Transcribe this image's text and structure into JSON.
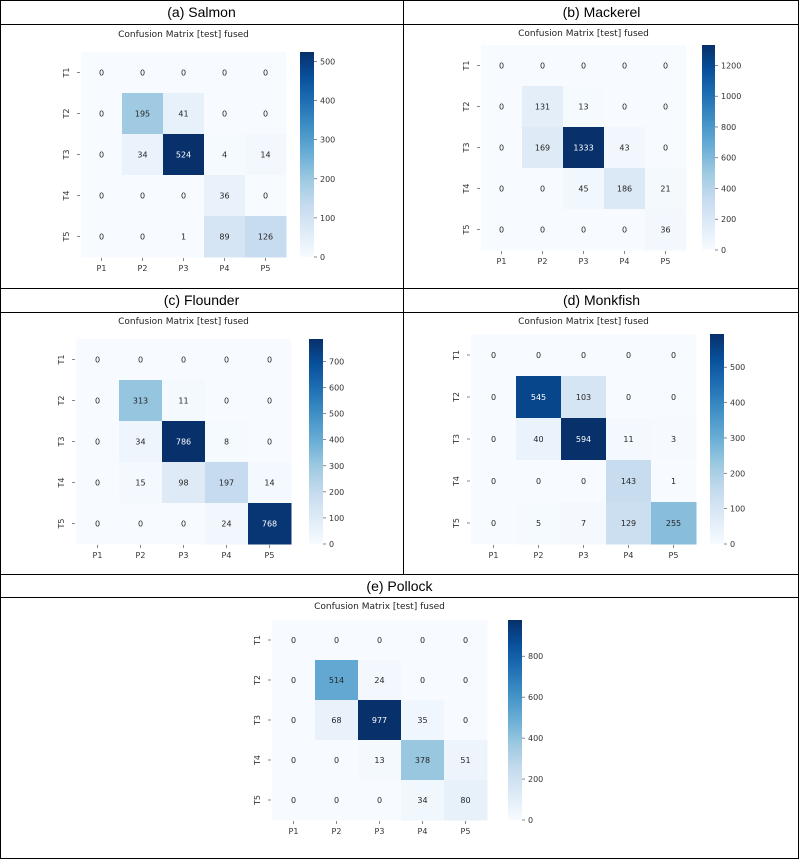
{
  "chart_data": [
    {
      "type": "heatmap",
      "panel_label": "(a) Salmon",
      "title": "Confusion Matrix [test] fused",
      "row_labels": [
        "T1",
        "T2",
        "T3",
        "T4",
        "T5"
      ],
      "col_labels": [
        "P1",
        "P2",
        "P3",
        "P4",
        "P5"
      ],
      "values": [
        [
          0,
          0,
          0,
          0,
          0
        ],
        [
          0,
          195,
          41,
          0,
          0
        ],
        [
          0,
          34,
          524,
          4,
          14
        ],
        [
          0,
          0,
          0,
          36,
          0
        ],
        [
          0,
          0,
          1,
          89,
          126
        ]
      ],
      "vmax": 524,
      "colorbar_ticks": [
        0,
        100,
        200,
        300,
        400,
        500
      ]
    },
    {
      "type": "heatmap",
      "panel_label": "(b) Mackerel",
      "title": "Confusion Matrix [test] fused",
      "row_labels": [
        "T1",
        "T2",
        "T3",
        "T4",
        "T5"
      ],
      "col_labels": [
        "P1",
        "P2",
        "P3",
        "P4",
        "P5"
      ],
      "values": [
        [
          0,
          0,
          0,
          0,
          0
        ],
        [
          0,
          131,
          13,
          0,
          0
        ],
        [
          0,
          169,
          1333,
          43,
          0
        ],
        [
          0,
          0,
          45,
          186,
          21
        ],
        [
          0,
          0,
          0,
          0,
          36
        ]
      ],
      "vmax": 1333,
      "colorbar_ticks": [
        0,
        200,
        400,
        600,
        800,
        1000,
        1200
      ]
    },
    {
      "type": "heatmap",
      "panel_label": "(c) Flounder",
      "title": "Confusion Matrix [test] fused",
      "row_labels": [
        "T1",
        "T2",
        "T3",
        "T4",
        "T5"
      ],
      "col_labels": [
        "P1",
        "P2",
        "P3",
        "P4",
        "P5"
      ],
      "values": [
        [
          0,
          0,
          0,
          0,
          0
        ],
        [
          0,
          313,
          11,
          0,
          0
        ],
        [
          0,
          34,
          786,
          8,
          0
        ],
        [
          0,
          15,
          98,
          197,
          14
        ],
        [
          0,
          0,
          0,
          24,
          768
        ]
      ],
      "vmax": 786,
      "colorbar_ticks": [
        0,
        100,
        200,
        300,
        400,
        500,
        600,
        700
      ]
    },
    {
      "type": "heatmap",
      "panel_label": "(d) Monkfish",
      "title": "Confusion Matrix [test] fused",
      "row_labels": [
        "T1",
        "T2",
        "T3",
        "T4",
        "T5"
      ],
      "col_labels": [
        "P1",
        "P2",
        "P3",
        "P4",
        "P5"
      ],
      "values": [
        [
          0,
          0,
          0,
          0,
          0
        ],
        [
          0,
          545,
          103,
          0,
          0
        ],
        [
          0,
          40,
          594,
          11,
          3
        ],
        [
          0,
          0,
          0,
          143,
          1
        ],
        [
          0,
          5,
          7,
          129,
          255
        ]
      ],
      "vmax": 594,
      "colorbar_ticks": [
        0,
        100,
        200,
        300,
        400,
        500
      ]
    },
    {
      "type": "heatmap",
      "panel_label": "(e) Pollock",
      "title": "Confusion Matrix [test] fused",
      "row_labels": [
        "T1",
        "T2",
        "T3",
        "T4",
        "T5"
      ],
      "col_labels": [
        "P1",
        "P2",
        "P3",
        "P4",
        "P5"
      ],
      "values": [
        [
          0,
          0,
          0,
          0,
          0
        ],
        [
          0,
          514,
          24,
          0,
          0
        ],
        [
          0,
          68,
          977,
          35,
          0
        ],
        [
          0,
          0,
          13,
          378,
          51
        ],
        [
          0,
          0,
          0,
          34,
          80
        ]
      ],
      "vmax": 977,
      "colorbar_ticks": [
        0,
        200,
        400,
        600,
        800
      ]
    }
  ]
}
